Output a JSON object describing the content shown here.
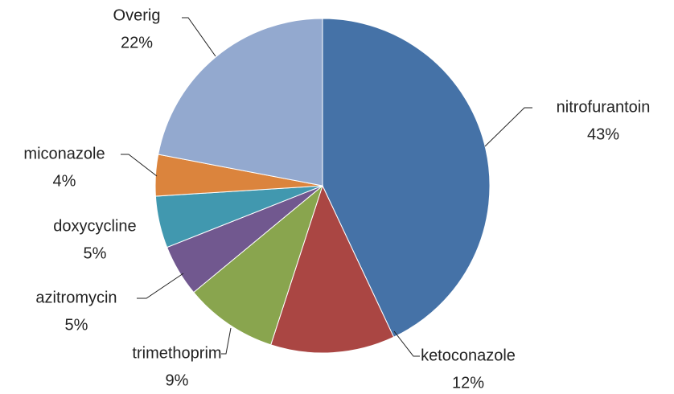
{
  "chart_data": {
    "type": "pie",
    "categories": [
      "nitrofurantoin",
      "ketoconazole",
      "trimethoprim",
      "azitromycin",
      "doxycycline",
      "miconazole",
      "Overig"
    ],
    "values": [
      43,
      12,
      9,
      5,
      5,
      4,
      22
    ],
    "value_labels": [
      "43%",
      "12%",
      "9%",
      "5%",
      "5%",
      "4%",
      "22%"
    ],
    "colors": [
      "#4572A7",
      "#AA4643",
      "#89A54E",
      "#71588F",
      "#4198AF",
      "#DB843D",
      "#93A9CF"
    ]
  }
}
